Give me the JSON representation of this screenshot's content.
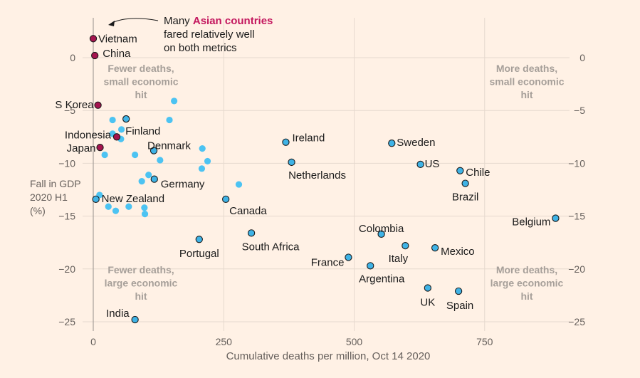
{
  "chart_data": {
    "type": "scatter",
    "xlabel": "Cumulative deaths per million, Oct 14 2020",
    "ylabel_lines": [
      "Fall in GDP",
      "2020 H1",
      "(%)"
    ],
    "xlim": [
      0,
      900
    ],
    "ylim": [
      -26.5,
      4
    ],
    "x_ticks": [
      0,
      250,
      500,
      750
    ],
    "y_ticks": [
      0,
      -5,
      -10,
      -15,
      -20,
      -25
    ],
    "y_tick_labels": [
      "0",
      "−5",
      "−10",
      "−15",
      "−20",
      "−25"
    ],
    "grid": true,
    "colors": {
      "highlight": "#a5144f",
      "labeled": "#3fb3e6",
      "unlabeled": "#4cc3f2",
      "background": "#fff1e5"
    },
    "annotation": {
      "lines": [
        {
          "text": "Many ",
          "highlight": "Asian countries"
        },
        {
          "text": "fared relatively well"
        },
        {
          "text": "on both metrics"
        }
      ]
    },
    "quadrant_labels": [
      {
        "lines": [
          "Fewer deaths,",
          "small economic",
          "hit"
        ],
        "position": "top-left"
      },
      {
        "lines": [
          "More deaths,",
          "small economic",
          "hit"
        ],
        "position": "top-right"
      },
      {
        "lines": [
          "Fewer deaths,",
          "large economic",
          "hit"
        ],
        "position": "bottom-left"
      },
      {
        "lines": [
          "More deaths,",
          "large economic",
          "hit"
        ],
        "position": "bottom-right"
      }
    ],
    "labeled_points": [
      {
        "name": "Vietnam",
        "x": 0,
        "y": 1.8,
        "group": "asian"
      },
      {
        "name": "China",
        "x": 3,
        "y": 0.2,
        "group": "asian"
      },
      {
        "name": "S Korea",
        "x": 9,
        "y": -4.5,
        "group": "asian"
      },
      {
        "name": "Indonesia",
        "x": 45,
        "y": -7.5,
        "group": "asian"
      },
      {
        "name": "Japan",
        "x": 13,
        "y": -8.5,
        "group": "asian"
      },
      {
        "name": "Finland",
        "x": 63,
        "y": -5.8,
        "group": "other"
      },
      {
        "name": "Denmark",
        "x": 116,
        "y": -8.8,
        "group": "other"
      },
      {
        "name": "Germany",
        "x": 117,
        "y": -11.5,
        "group": "other"
      },
      {
        "name": "New Zealand",
        "x": 5,
        "y": -13.4,
        "group": "other"
      },
      {
        "name": "India",
        "x": 80,
        "y": -24.8,
        "group": "other"
      },
      {
        "name": "Portugal",
        "x": 203,
        "y": -17.2,
        "group": "other"
      },
      {
        "name": "Canada",
        "x": 254,
        "y": -13.4,
        "group": "other"
      },
      {
        "name": "South Africa",
        "x": 303,
        "y": -16.6,
        "group": "other"
      },
      {
        "name": "Ireland",
        "x": 369,
        "y": -8.0,
        "group": "other"
      },
      {
        "name": "Netherlands",
        "x": 380,
        "y": -9.9,
        "group": "other"
      },
      {
        "name": "Sweden",
        "x": 572,
        "y": -8.1,
        "group": "other"
      },
      {
        "name": "US",
        "x": 627,
        "y": -10.1,
        "group": "other"
      },
      {
        "name": "Chile",
        "x": 703,
        "y": -10.7,
        "group": "other"
      },
      {
        "name": "Brazil",
        "x": 713,
        "y": -11.9,
        "group": "other"
      },
      {
        "name": "Belgium",
        "x": 886,
        "y": -15.2,
        "group": "other"
      },
      {
        "name": "Colombia",
        "x": 552,
        "y": -16.7,
        "group": "other"
      },
      {
        "name": "Italy",
        "x": 598,
        "y": -17.8,
        "group": "other"
      },
      {
        "name": "Mexico",
        "x": 655,
        "y": -18.0,
        "group": "other"
      },
      {
        "name": "France",
        "x": 489,
        "y": -18.9,
        "group": "other"
      },
      {
        "name": "Argentina",
        "x": 531,
        "y": -19.7,
        "group": "other"
      },
      {
        "name": "UK",
        "x": 641,
        "y": -21.8,
        "group": "other"
      },
      {
        "name": "Spain",
        "x": 700,
        "y": -22.1,
        "group": "other"
      }
    ],
    "unlabeled_points": [
      {
        "x": 155,
        "y": -4.1
      },
      {
        "x": 37,
        "y": -5.9
      },
      {
        "x": 146,
        "y": -5.9
      },
      {
        "x": 54,
        "y": -6.8
      },
      {
        "x": 37,
        "y": -7.2
      },
      {
        "x": 53,
        "y": -7.7
      },
      {
        "x": 209,
        "y": -8.6
      },
      {
        "x": 22,
        "y": -9.2
      },
      {
        "x": 80,
        "y": -9.2
      },
      {
        "x": 128,
        "y": -9.7
      },
      {
        "x": 219,
        "y": -9.8
      },
      {
        "x": 208,
        "y": -10.5
      },
      {
        "x": 106,
        "y": -11.1
      },
      {
        "x": 93,
        "y": -11.7
      },
      {
        "x": 279,
        "y": -12.0
      },
      {
        "x": 12,
        "y": -13.0
      },
      {
        "x": 29,
        "y": -14.1
      },
      {
        "x": 68,
        "y": -14.1
      },
      {
        "x": 98,
        "y": -14.2
      },
      {
        "x": 43,
        "y": -14.5
      },
      {
        "x": 99,
        "y": -14.8
      }
    ]
  }
}
